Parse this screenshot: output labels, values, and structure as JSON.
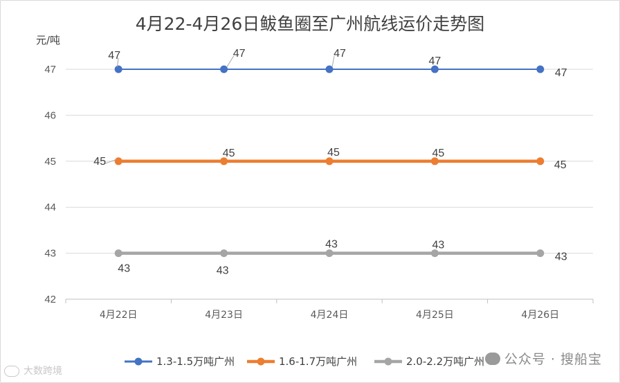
{
  "chart_data": {
    "type": "line",
    "title": "4月22-4月26日鲅鱼圈至广州航线运价走势图",
    "ylabel": "元/吨",
    "xlabel": "",
    "categories": [
      "4月22日",
      "4月23日",
      "4月24日",
      "4月25日",
      "4月26日"
    ],
    "ylim": [
      42,
      47
    ],
    "yticks": [
      42,
      43,
      44,
      45,
      46,
      47
    ],
    "grid": true,
    "legend": "bottom",
    "series": [
      {
        "name": "1.3-1.5万吨广州",
        "values": [
          47,
          47,
          47,
          47,
          47
        ],
        "color": "#4472c4",
        "labels": [
          "47",
          "47",
          "47",
          "47",
          "47"
        ]
      },
      {
        "name": "1.6-1.7万吨广州",
        "values": [
          45,
          45,
          45,
          45,
          45
        ],
        "color": "#ed7d31",
        "labels": [
          "45",
          "45",
          "45",
          "45",
          "45"
        ]
      },
      {
        "name": "2.0-2.2万吨广州",
        "values": [
          43,
          43,
          43,
          43,
          43
        ],
        "color": "#a5a5a5",
        "labels": [
          "43",
          "43",
          "43",
          "43",
          "43"
        ]
      }
    ]
  },
  "watermarks": {
    "right": "公众号 · 搜船宝",
    "left": "大数跨境"
  }
}
